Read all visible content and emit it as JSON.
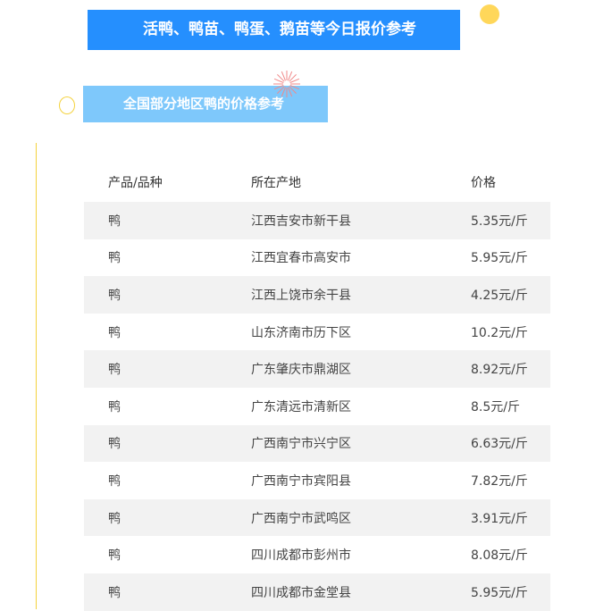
{
  "banner": {
    "title": "活鸭、鸭苗、鸭蛋、鹅苗等今日报价参考"
  },
  "section": {
    "title": "全国部分地区鸭的价格参考"
  },
  "colors": {
    "banner": "#258ffe",
    "section": "#7ec8fb",
    "accent": "#ffd75a"
  },
  "table": {
    "headers": [
      "产品/品种",
      "所在产地",
      "价格"
    ],
    "rows": [
      [
        "鸭",
        "江西吉安市新干县",
        "5.35元/斤"
      ],
      [
        "鸭",
        "江西宜春市高安市",
        "5.95元/斤"
      ],
      [
        "鸭",
        "江西上饶市余干县",
        "4.25元/斤"
      ],
      [
        "鸭",
        "山东济南市历下区",
        "10.2元/斤"
      ],
      [
        "鸭",
        "广东肇庆市鼎湖区",
        "8.92元/斤"
      ],
      [
        "鸭",
        "广东清远市清新区",
        "8.5元/斤"
      ],
      [
        "鸭",
        "广西南宁市兴宁区",
        "6.63元/斤"
      ],
      [
        "鸭",
        "广西南宁市宾阳县",
        "7.82元/斤"
      ],
      [
        "鸭",
        "广西南宁市武鸣区",
        "3.91元/斤"
      ],
      [
        "鸭",
        "四川成都市彭州市",
        "8.08元/斤"
      ],
      [
        "鸭",
        "四川成都市金堂县",
        "5.95元/斤"
      ]
    ]
  }
}
